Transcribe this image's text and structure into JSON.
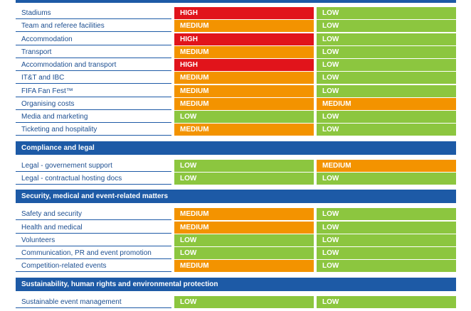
{
  "colors": {
    "HIGH": "#e1141b",
    "MEDIUM": "#f39300",
    "LOW": "#8cc63f",
    "header": "#1d5aa6",
    "label_text": "#1d4f91"
  },
  "groups": [
    {
      "title": "",
      "rows": [
        {
          "label": "Stadiums",
          "r1": "HIGH",
          "r2": "LOW"
        },
        {
          "label": "Team and referee facilities",
          "r1": "MEDIUM",
          "r2": "LOW"
        },
        {
          "label": "Accommodation",
          "r1": "HIGH",
          "r2": "LOW"
        },
        {
          "label": "Transport",
          "r1": "MEDIUM",
          "r2": "LOW"
        },
        {
          "label": "Accommodation and transport",
          "r1": "HIGH",
          "r2": "LOW"
        },
        {
          "label": "IT&T and IBC",
          "r1": "MEDIUM",
          "r2": "LOW"
        },
        {
          "label": "FIFA Fan Fest™",
          "r1": "MEDIUM",
          "r2": "LOW"
        },
        {
          "label": "Organising costs",
          "r1": "MEDIUM",
          "r2": "MEDIUM"
        },
        {
          "label": "Media and marketing",
          "r1": "LOW",
          "r2": "LOW"
        },
        {
          "label": "Ticketing and hospitality",
          "r1": "MEDIUM",
          "r2": "LOW"
        }
      ]
    },
    {
      "title": "Compliance and legal",
      "rows": [
        {
          "label": "Legal - governement support",
          "r1": "LOW",
          "r2": "MEDIUM"
        },
        {
          "label": "Legal - contractual hosting docs",
          "r1": "LOW",
          "r2": "LOW"
        }
      ]
    },
    {
      "title": "Security, medical and event-related matters",
      "rows": [
        {
          "label": "Safety and security",
          "r1": "MEDIUM",
          "r2": "LOW"
        },
        {
          "label": "Health and medical",
          "r1": "MEDIUM",
          "r2": "LOW"
        },
        {
          "label": "Volunteers",
          "r1": "LOW",
          "r2": "LOW"
        },
        {
          "label": "Communication, PR and event promotion",
          "r1": "LOW",
          "r2": "LOW"
        },
        {
          "label": "Competition-related events",
          "r1": "MEDIUM",
          "r2": "LOW"
        }
      ]
    },
    {
      "title": "Sustainability, human rights and environmental protection",
      "rows": [
        {
          "label": "Sustainable event management",
          "r1": "LOW",
          "r2": "LOW"
        }
      ]
    }
  ]
}
